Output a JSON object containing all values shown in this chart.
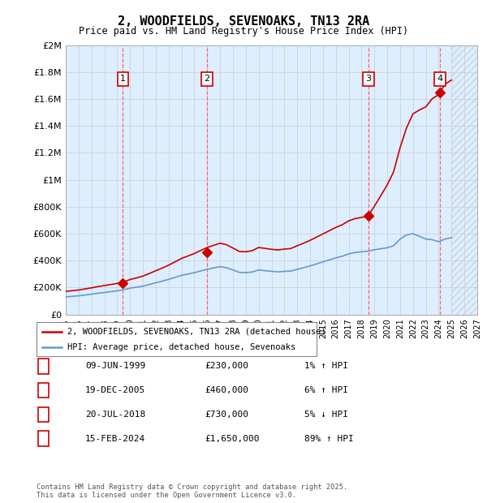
{
  "title": "2, WOODFIELDS, SEVENOAKS, TN13 2RA",
  "subtitle": "Price paid vs. HM Land Registry's House Price Index (HPI)",
  "xmin": 1995,
  "xmax": 2027,
  "ymin": 0,
  "ymax": 2000000,
  "yticks": [
    0,
    200000,
    400000,
    600000,
    800000,
    1000000,
    1200000,
    1400000,
    1600000,
    1800000,
    2000000
  ],
  "ytick_labels": [
    "£0",
    "£200K",
    "£400K",
    "£600K",
    "£800K",
    "£1M",
    "£1.2M",
    "£1.4M",
    "£1.6M",
    "£1.8M",
    "£2M"
  ],
  "transaction_dates": [
    1999.44,
    2005.96,
    2018.55,
    2024.12
  ],
  "transaction_prices": [
    230000,
    460000,
    730000,
    1650000
  ],
  "transaction_labels": [
    "1",
    "2",
    "3",
    "4"
  ],
  "red_line_color": "#cc0000",
  "blue_line_color": "#6699cc",
  "annotation_box_color": "#cc0000",
  "vline_color": "#ff6666",
  "background_color": "#ddeeff",
  "legend_entries": [
    "2, WOODFIELDS, SEVENOAKS, TN13 2RA (detached house)",
    "HPI: Average price, detached house, Sevenoaks"
  ],
  "table_rows": [
    {
      "num": "1",
      "date": "09-JUN-1999",
      "price": "£230,000",
      "hpi": "1% ↑ HPI"
    },
    {
      "num": "2",
      "date": "19-DEC-2005",
      "price": "£460,000",
      "hpi": "6% ↑ HPI"
    },
    {
      "num": "3",
      "date": "20-JUL-2018",
      "price": "£730,000",
      "hpi": "5% ↓ HPI"
    },
    {
      "num": "4",
      "date": "15-FEB-2024",
      "price": "£1,650,000",
      "hpi": "89% ↑ HPI"
    }
  ],
  "footer": "Contains HM Land Registry data © Crown copyright and database right 2025.\nThis data is licensed under the Open Government Licence v3.0.",
  "hpi_years": [
    1995.0,
    1995.5,
    1996.0,
    1996.5,
    1997.0,
    1997.5,
    1998.0,
    1998.5,
    1999.0,
    1999.5,
    2000.0,
    2000.5,
    2001.0,
    2001.5,
    2002.0,
    2002.5,
    2003.0,
    2003.5,
    2004.0,
    2004.5,
    2005.0,
    2005.5,
    2006.0,
    2006.5,
    2007.0,
    2007.5,
    2008.0,
    2008.5,
    2009.0,
    2009.5,
    2010.0,
    2010.5,
    2011.0,
    2011.5,
    2012.0,
    2012.5,
    2013.0,
    2013.5,
    2014.0,
    2014.5,
    2015.0,
    2015.5,
    2016.0,
    2016.5,
    2017.0,
    2017.5,
    2018.0,
    2018.5,
    2019.0,
    2019.5,
    2020.0,
    2020.5,
    2021.0,
    2021.5,
    2022.0,
    2022.5,
    2023.0,
    2023.5,
    2024.0,
    2024.5,
    2025.0
  ],
  "hpi_values": [
    130000,
    134000,
    138000,
    144000,
    150000,
    157000,
    163000,
    169000,
    175000,
    183000,
    195000,
    202000,
    210000,
    222000,
    235000,
    247000,
    260000,
    275000,
    290000,
    300000,
    310000,
    323000,
    335000,
    345000,
    355000,
    347000,
    330000,
    312000,
    310000,
    315000,
    330000,
    325000,
    320000,
    316000,
    320000,
    322000,
    335000,
    347000,
    360000,
    375000,
    390000,
    405000,
    420000,
    432000,
    450000,
    460000,
    465000,
    470000,
    480000,
    488000,
    495000,
    510000,
    560000,
    590000,
    600000,
    580000,
    560000,
    555000,
    540000,
    560000,
    570000
  ],
  "t_segs": [
    1995.0,
    1999.44,
    2005.96,
    2018.55,
    2024.12,
    2025.5
  ],
  "p_segs_ratios": [
    1.314,
    1.314,
    1.484,
    1.553,
    3.056,
    3.056
  ]
}
